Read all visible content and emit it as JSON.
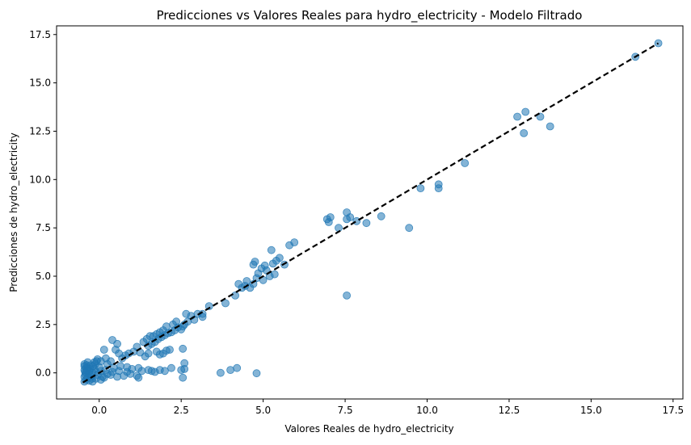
{
  "chart_data": {
    "type": "scatter",
    "title": "Predicciones vs Valores Reales para hydro_electricity - Modelo Filtrado",
    "xlabel": "Valores Reales de hydro_electricity",
    "ylabel": "Predicciones de hydro_electricity",
    "xlim": [
      -1.3,
      17.8
    ],
    "ylim": [
      -1.35,
      17.95
    ],
    "xticks": [
      0.0,
      2.5,
      5.0,
      7.5,
      10.0,
      12.5,
      15.0,
      17.5
    ],
    "xtick_labels": [
      "0.0",
      "2.5",
      "5.0",
      "7.5",
      "10.0",
      "12.5",
      "15.0",
      "17.5"
    ],
    "yticks": [
      0.0,
      2.5,
      5.0,
      7.5,
      10.0,
      12.5,
      15.0,
      17.5
    ],
    "ytick_labels": [
      "0.0",
      "2.5",
      "5.0",
      "7.5",
      "10.0",
      "12.5",
      "15.0",
      "17.5"
    ],
    "grid": false,
    "point_color": "#1f77b4",
    "reference_line": {
      "x": [
        -0.5,
        17.05
      ],
      "y": [
        -0.5,
        17.05
      ],
      "style": "dashed",
      "color": "#000000"
    },
    "points": [
      [
        17.05,
        17.05
      ],
      [
        16.35,
        16.35
      ],
      [
        12.75,
        13.25
      ],
      [
        13.0,
        13.5
      ],
      [
        13.45,
        13.25
      ],
      [
        12.95,
        12.4
      ],
      [
        13.75,
        12.75
      ],
      [
        11.15,
        10.85
      ],
      [
        10.35,
        9.75
      ],
      [
        10.35,
        9.55
      ],
      [
        9.8,
        9.55
      ],
      [
        9.45,
        7.5
      ],
      [
        8.6,
        8.1
      ],
      [
        8.15,
        7.75
      ],
      [
        7.85,
        7.85
      ],
      [
        7.55,
        8.3
      ],
      [
        7.65,
        8.05
      ],
      [
        7.55,
        7.95
      ],
      [
        7.3,
        7.5
      ],
      [
        6.95,
        7.95
      ],
      [
        7.05,
        8.05
      ],
      [
        7.0,
        7.8
      ],
      [
        7.55,
        4.0
      ],
      [
        5.95,
        6.75
      ],
      [
        5.8,
        6.6
      ],
      [
        5.65,
        5.6
      ],
      [
        5.5,
        5.95
      ],
      [
        5.4,
        5.8
      ],
      [
        5.3,
        5.65
      ],
      [
        5.25,
        6.35
      ],
      [
        5.35,
        5.1
      ],
      [
        5.2,
        5.0
      ],
      [
        5.1,
        5.3
      ],
      [
        5.05,
        5.55
      ],
      [
        5.0,
        4.8
      ],
      [
        4.95,
        5.4
      ],
      [
        4.85,
        5.15
      ],
      [
        4.75,
        5.75
      ],
      [
        4.7,
        5.6
      ],
      [
        4.8,
        4.9
      ],
      [
        4.7,
        4.6
      ],
      [
        4.6,
        4.4
      ],
      [
        4.5,
        4.75
      ],
      [
        4.45,
        4.5
      ],
      [
        4.35,
        4.4
      ],
      [
        4.25,
        4.6
      ],
      [
        4.15,
        4.0
      ],
      [
        3.85,
        3.6
      ],
      [
        3.35,
        3.45
      ],
      [
        3.15,
        2.9
      ],
      [
        3.15,
        3.05
      ],
      [
        3.0,
        3.05
      ],
      [
        2.9,
        2.75
      ],
      [
        2.8,
        2.95
      ],
      [
        2.7,
        2.65
      ],
      [
        2.6,
        2.5
      ],
      [
        2.55,
        2.4
      ],
      [
        2.5,
        2.25
      ],
      [
        2.4,
        2.35
      ],
      [
        2.3,
        2.2
      ],
      [
        2.2,
        2.1
      ],
      [
        2.1,
        2.05
      ],
      [
        2.0,
        1.95
      ],
      [
        1.9,
        1.85
      ],
      [
        1.8,
        1.75
      ],
      [
        1.7,
        1.6
      ],
      [
        1.6,
        1.5
      ],
      [
        1.5,
        1.4
      ],
      [
        2.65,
        3.05
      ],
      [
        2.35,
        2.65
      ],
      [
        2.25,
        2.5
      ],
      [
        2.05,
        2.4
      ],
      [
        1.95,
        2.2
      ],
      [
        1.85,
        2.1
      ],
      [
        1.75,
        2.0
      ],
      [
        1.65,
        1.9
      ],
      [
        1.55,
        1.9
      ],
      [
        1.45,
        1.75
      ],
      [
        1.35,
        1.6
      ],
      [
        2.55,
        1.25
      ],
      [
        2.15,
        1.2
      ],
      [
        2.05,
        1.15
      ],
      [
        2.6,
        0.5
      ],
      [
        2.5,
        0.15
      ],
      [
        2.55,
        -0.25
      ],
      [
        2.6,
        0.2
      ],
      [
        2.2,
        0.25
      ],
      [
        2.0,
        0.1
      ],
      [
        1.85,
        0.15
      ],
      [
        1.7,
        0.05
      ],
      [
        1.6,
        0.1
      ],
      [
        1.5,
        0.15
      ],
      [
        1.95,
        1.0
      ],
      [
        1.85,
        0.95
      ],
      [
        1.75,
        1.1
      ],
      [
        1.5,
        1.0
      ],
      [
        1.4,
        0.85
      ],
      [
        1.25,
        1.05
      ],
      [
        1.15,
        1.35
      ],
      [
        1.05,
        1.1
      ],
      [
        0.9,
        1.0
      ],
      [
        0.8,
        0.9
      ],
      [
        0.7,
        0.75
      ],
      [
        0.6,
        1.0
      ],
      [
        0.55,
        1.5
      ],
      [
        0.4,
        1.7
      ],
      [
        0.5,
        1.2
      ],
      [
        0.35,
        0.6
      ],
      [
        0.2,
        0.75
      ],
      [
        0.15,
        1.2
      ],
      [
        0.05,
        0.6
      ],
      [
        -0.05,
        0.7
      ],
      [
        0.25,
        0.45
      ],
      [
        0.45,
        0.25
      ],
      [
        0.65,
        0.35
      ],
      [
        0.85,
        0.3
      ],
      [
        1.0,
        0.2
      ],
      [
        1.2,
        0.25
      ],
      [
        1.3,
        0.1
      ],
      [
        1.15,
        -0.15
      ],
      [
        0.95,
        -0.05
      ],
      [
        0.75,
        -0.15
      ],
      [
        0.55,
        -0.2
      ],
      [
        0.35,
        -0.1
      ],
      [
        0.15,
        -0.25
      ],
      [
        1.2,
        -0.25
      ],
      [
        0.85,
        0.05
      ],
      [
        0.6,
        0.1
      ],
      [
        0.4,
        0.05
      ],
      [
        0.25,
        -0.05
      ],
      [
        0.05,
        0.1
      ],
      [
        3.7,
        0.0
      ],
      [
        4.0,
        0.15
      ],
      [
        4.2,
        0.25
      ],
      [
        4.8,
        -0.02
      ],
      [
        -0.45,
        -0.45
      ],
      [
        -0.4,
        -0.35
      ],
      [
        -0.35,
        -0.25
      ],
      [
        -0.45,
        -0.2
      ],
      [
        -0.4,
        0.0
      ],
      [
        -0.45,
        0.15
      ],
      [
        -0.35,
        0.3
      ],
      [
        -0.45,
        0.45
      ],
      [
        -0.4,
        0.25
      ],
      [
        -0.3,
        -0.4
      ],
      [
        -0.25,
        -0.2
      ],
      [
        -0.2,
        0.0
      ],
      [
        -0.3,
        0.1
      ],
      [
        -0.15,
        0.2
      ],
      [
        -0.1,
        -0.3
      ],
      [
        -0.05,
        -0.1
      ],
      [
        0.0,
        0.3
      ],
      [
        -0.25,
        0.4
      ],
      [
        -0.15,
        0.55
      ],
      [
        -0.35,
        0.55
      ],
      [
        -0.45,
        0.35
      ],
      [
        -0.2,
        -0.45
      ],
      [
        -0.1,
        0.05
      ],
      [
        0.05,
        -0.35
      ],
      [
        -0.42,
        -0.1
      ],
      [
        -0.38,
        0.4
      ],
      [
        -0.32,
        -0.05
      ],
      [
        -0.28,
        0.2
      ],
      [
        -0.18,
        0.35
      ],
      [
        -0.12,
        0.45
      ],
      [
        -0.08,
        0.6
      ],
      [
        -0.43,
        0.05
      ],
      [
        -0.37,
        0.12
      ],
      [
        -0.22,
        -0.3
      ],
      [
        0.1,
        -0.2
      ],
      [
        0.2,
        0.15
      ]
    ]
  }
}
